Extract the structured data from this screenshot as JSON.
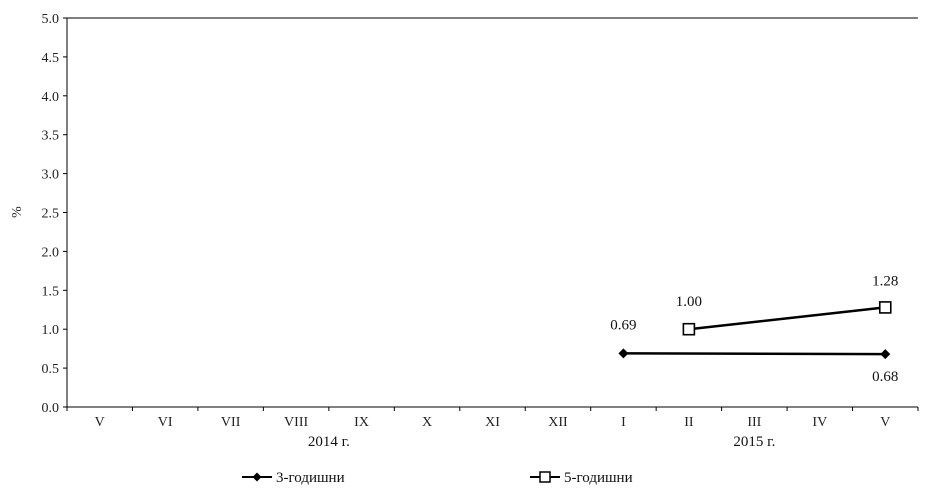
{
  "chart_data": {
    "type": "line",
    "ylabel": "%",
    "ylim": [
      0,
      5
    ],
    "yticks": [
      "0.0",
      "0.5",
      "1.0",
      "1.5",
      "2.0",
      "2.5",
      "3.0",
      "3.5",
      "4.0",
      "4.5",
      "5.0"
    ],
    "categories": [
      "V",
      "VI",
      "VII",
      "VIII",
      "IX",
      "X",
      "XI",
      "XII",
      "I",
      "II",
      "III",
      "IV",
      "V"
    ],
    "year_groups": [
      {
        "label": "2014 г.",
        "from": 0,
        "to": 7
      },
      {
        "label": "2015 г.",
        "from": 8,
        "to": 12
      }
    ],
    "series": [
      {
        "name": "3-годишни",
        "marker": "diamond",
        "values": [
          null,
          null,
          null,
          null,
          null,
          null,
          null,
          null,
          0.69,
          null,
          null,
          null,
          0.68
        ],
        "labels": {
          "8": "0.69",
          "12": "0.68"
        }
      },
      {
        "name": "5-годишни",
        "marker": "square",
        "values": [
          null,
          null,
          null,
          null,
          null,
          null,
          null,
          null,
          null,
          1.0,
          null,
          null,
          1.28
        ],
        "labels": {
          "9": "1.00",
          "12": "1.28"
        }
      }
    ],
    "grid": false,
    "legend_position": "bottom"
  }
}
